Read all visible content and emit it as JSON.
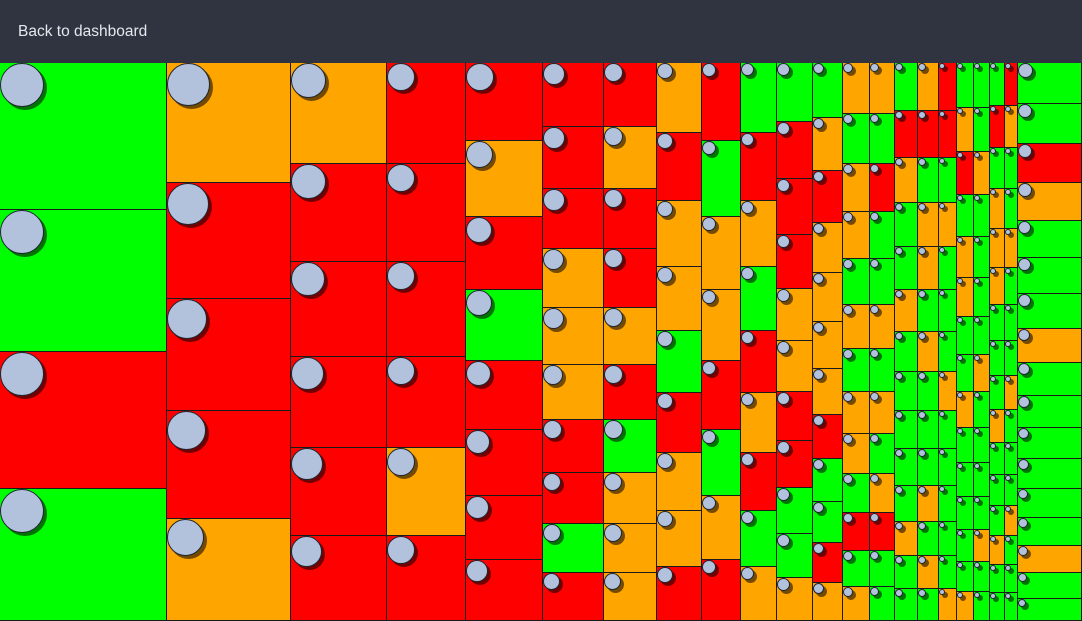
{
  "nav": {
    "back_label": "Back to dashboard"
  },
  "status_colors": {
    "green": "#00ff00",
    "orange": "#ffa500",
    "red": "#ff0000"
  },
  "icons": {
    "tile_marker": "avatar-circle-icon"
  },
  "treemap_grid": {
    "columns": [
      [
        "green",
        "green",
        "red",
        "green"
      ],
      [
        "orange",
        "red",
        "red",
        "red",
        "orange"
      ],
      [
        "orange",
        "red",
        "red",
        "red",
        "red",
        "red"
      ],
      [
        "red",
        "red",
        "red",
        "red",
        "orange",
        "red"
      ],
      [
        "red",
        "orange",
        "red",
        "green",
        "red",
        "red",
        "red",
        "red"
      ],
      [
        "red",
        "red",
        "red",
        "orange",
        "orange",
        "orange",
        "red",
        "red",
        "green",
        "red"
      ],
      [
        "red",
        "orange",
        "red",
        "red",
        "orange",
        "red",
        "green",
        "orange",
        "orange",
        "orange"
      ],
      [
        "orange",
        "red",
        "orange",
        "orange",
        "green",
        "red",
        "orange",
        "orange",
        "red"
      ],
      [
        "red",
        "green",
        "orange",
        "orange",
        "red",
        "green",
        "orange",
        "red"
      ],
      [
        "green",
        "red",
        "orange",
        "green",
        "red",
        "orange",
        "red",
        "green",
        "orange"
      ],
      [
        "green",
        "red",
        "red",
        "red",
        "orange",
        "orange",
        "red",
        "red",
        "green",
        "green",
        "orange"
      ],
      [
        "green",
        "orange",
        "red",
        "orange",
        "orange",
        "orange",
        "orange",
        "red",
        "green",
        "green",
        "red",
        "orange"
      ],
      [
        "orange",
        "green",
        "orange",
        "orange",
        "green",
        "orange",
        "green",
        "orange",
        "orange",
        "green",
        "red",
        "green",
        "orange"
      ],
      [
        "orange",
        "green",
        "red",
        "green",
        "green",
        "orange",
        "green",
        "orange",
        "green",
        "orange",
        "red",
        "green",
        "green"
      ],
      [
        "green",
        "red",
        "orange",
        "green",
        "green",
        "orange",
        "green",
        "green",
        "green",
        "green",
        "green",
        "orange",
        "green",
        "green"
      ],
      [
        "orange",
        "red",
        "green",
        "orange",
        "orange",
        "green",
        "orange",
        "green",
        "green",
        "green",
        "orange",
        "green",
        "orange",
        "green"
      ],
      [
        "red",
        "red",
        "green",
        "orange",
        "green",
        "green",
        "green",
        "orange",
        "green",
        "green",
        "green",
        "green",
        "green",
        "orange"
      ],
      [
        "green",
        "orange",
        "red",
        "green",
        "orange",
        "orange",
        "green",
        "green",
        "orange",
        "green",
        "green",
        "green",
        "green",
        "green",
        "orange"
      ],
      [
        "green",
        "green",
        "orange",
        "green",
        "green",
        "green",
        "green",
        "orange",
        "green",
        "green",
        "green",
        "green",
        "orange",
        "green",
        "green"
      ],
      [
        "green",
        "red",
        "green",
        "orange",
        "orange",
        "orange",
        "green",
        "green",
        "green",
        "orange",
        "green",
        "green",
        "green",
        "orange",
        "green",
        "green"
      ],
      [
        "red",
        "orange",
        "green",
        "green",
        "orange",
        "green",
        "green",
        "green",
        "orange",
        "green",
        "green",
        "green",
        "orange",
        "green",
        "green",
        "green"
      ],
      [
        "green",
        "green",
        "red",
        "orange",
        "green",
        "green",
        "green",
        "orange",
        "green",
        "green",
        "green",
        "green",
        "green",
        "green",
        "orange",
        "green",
        "green"
      ]
    ]
  }
}
